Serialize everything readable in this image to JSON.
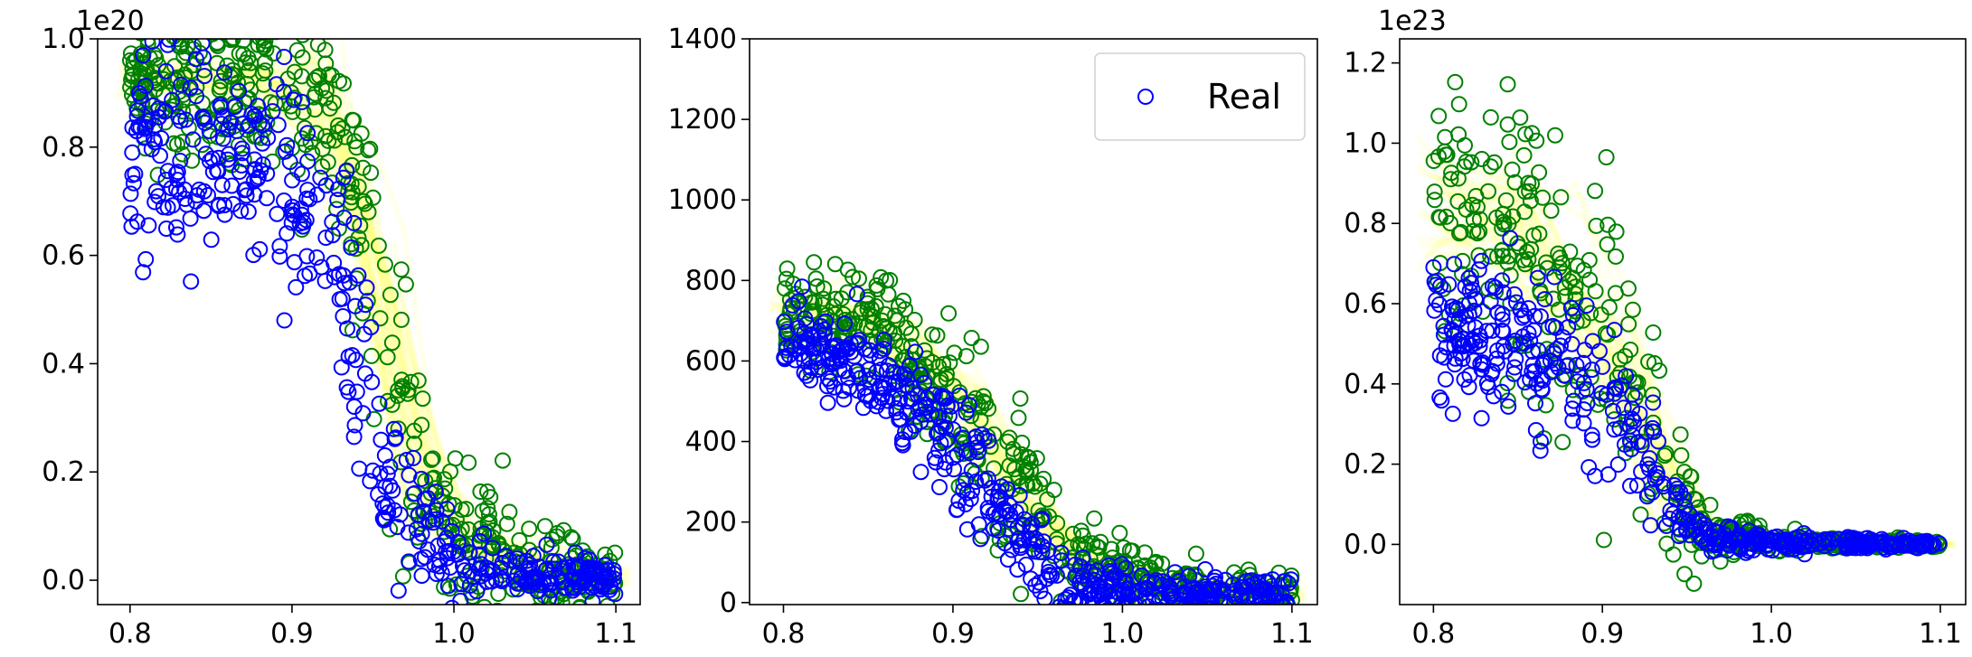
{
  "chart_data": [
    {
      "type": "scatter",
      "offset_label": "1e20",
      "xlim": [
        0.78,
        1.115
      ],
      "ylim": [
        -0.045,
        1.0
      ],
      "xticks": [
        0.8,
        0.9,
        1.0,
        1.1
      ],
      "xtick_labels": [
        "0.8",
        "0.9",
        "1.0",
        "1.1"
      ],
      "yticks": [
        0.0,
        0.2,
        0.4,
        0.6,
        0.8,
        1.0
      ],
      "ytick_labels": [
        "0.0",
        "0.2",
        "0.4",
        "0.6",
        "0.8",
        "1.0"
      ],
      "legend": null,
      "series": [
        {
          "name": "Real",
          "color": "#0000ff",
          "count": 430,
          "seed": 11,
          "profile": [
            [
              0.8,
              0.8,
              0.09
            ],
            [
              0.88,
              0.78,
              0.1
            ],
            [
              0.91,
              0.7,
              0.11
            ],
            [
              0.93,
              0.62,
              0.12
            ],
            [
              0.95,
              0.3,
              0.1
            ],
            [
              0.97,
              0.12,
              0.07
            ],
            [
              1.0,
              0.03,
              0.04
            ],
            [
              1.05,
              0.01,
              0.02
            ],
            [
              1.1,
              0.005,
              0.02
            ]
          ]
        },
        {
          "name": "",
          "color": "#008000",
          "count": 460,
          "seed": 23,
          "profile": [
            [
              0.8,
              0.92,
              0.06
            ],
            [
              0.88,
              0.92,
              0.07
            ],
            [
              0.92,
              0.88,
              0.09
            ],
            [
              0.94,
              0.7,
              0.12
            ],
            [
              0.96,
              0.45,
              0.14
            ],
            [
              0.98,
              0.2,
              0.12
            ],
            [
              1.0,
              0.08,
              0.07
            ],
            [
              1.05,
              0.02,
              0.04
            ],
            [
              1.1,
              0.005,
              0.02
            ]
          ]
        }
      ]
    },
    {
      "type": "scatter",
      "offset_label": "",
      "xlim": [
        0.78,
        1.115
      ],
      "ylim": [
        -5,
        1400
      ],
      "xticks": [
        0.8,
        0.9,
        1.0,
        1.1
      ],
      "xtick_labels": [
        "0.8",
        "0.9",
        "1.0",
        "1.1"
      ],
      "yticks": [
        0,
        200,
        400,
        600,
        800,
        1000,
        1200,
        1400
      ],
      "ytick_labels": [
        "0",
        "200",
        "400",
        "600",
        "800",
        "1000",
        "1200",
        "1400"
      ],
      "legend": {
        "label": "Real",
        "color": "#0000ff",
        "placement": "upper right"
      },
      "series": [
        {
          "name": "Real",
          "color": "#0000ff",
          "count": 470,
          "seed": 37,
          "profile": [
            [
              0.8,
              640,
              50
            ],
            [
              0.85,
              580,
              60
            ],
            [
              0.88,
              480,
              60
            ],
            [
              0.91,
              340,
              70
            ],
            [
              0.94,
              150,
              60
            ],
            [
              0.97,
              40,
              35
            ],
            [
              1.0,
              25,
              25
            ],
            [
              1.05,
              20,
              25
            ],
            [
              1.1,
              15,
              25
            ]
          ]
        },
        {
          "name": "",
          "color": "#008000",
          "count": 470,
          "seed": 53,
          "profile": [
            [
              0.8,
              720,
              50
            ],
            [
              0.85,
              700,
              80
            ],
            [
              0.88,
              580,
              100
            ],
            [
              0.91,
              460,
              110
            ],
            [
              0.94,
              260,
              100
            ],
            [
              0.97,
              120,
              60
            ],
            [
              1.0,
              60,
              45
            ],
            [
              1.05,
              30,
              30
            ],
            [
              1.1,
              20,
              25
            ]
          ]
        }
      ]
    },
    {
      "type": "scatter",
      "offset_label": "1e23",
      "xlim": [
        0.78,
        1.115
      ],
      "ylim": [
        -0.15,
        1.26
      ],
      "xticks": [
        0.8,
        0.9,
        1.0,
        1.1
      ],
      "xtick_labels": [
        "0.8",
        "0.9",
        "1.0",
        "1.1"
      ],
      "yticks": [
        0.0,
        0.2,
        0.4,
        0.6,
        0.8,
        1.0,
        1.2
      ],
      "ytick_labels": [
        "0.0",
        "0.2",
        "0.4",
        "0.6",
        "0.8",
        "1.0",
        "1.2"
      ],
      "legend": null,
      "series": [
        {
          "name": "Real",
          "color": "#0000ff",
          "count": 440,
          "seed": 71,
          "profile": [
            [
              0.8,
              0.55,
              0.08
            ],
            [
              0.85,
              0.5,
              0.09
            ],
            [
              0.88,
              0.45,
              0.09
            ],
            [
              0.91,
              0.35,
              0.09
            ],
            [
              0.94,
              0.12,
              0.07
            ],
            [
              0.96,
              0.02,
              0.02
            ],
            [
              1.0,
              0.005,
              0.01
            ],
            [
              1.1,
              0.0,
              0.005
            ]
          ]
        },
        {
          "name": "",
          "color": "#008000",
          "count": 440,
          "seed": 89,
          "profile": [
            [
              0.8,
              0.8,
              0.15
            ],
            [
              0.85,
              0.8,
              0.18
            ],
            [
              0.88,
              0.6,
              0.18
            ],
            [
              0.91,
              0.45,
              0.15
            ],
            [
              0.94,
              0.15,
              0.12
            ],
            [
              0.96,
              0.03,
              0.04
            ],
            [
              1.0,
              0.005,
              0.01
            ],
            [
              1.1,
              0.0,
              0.005
            ]
          ]
        }
      ]
    }
  ]
}
